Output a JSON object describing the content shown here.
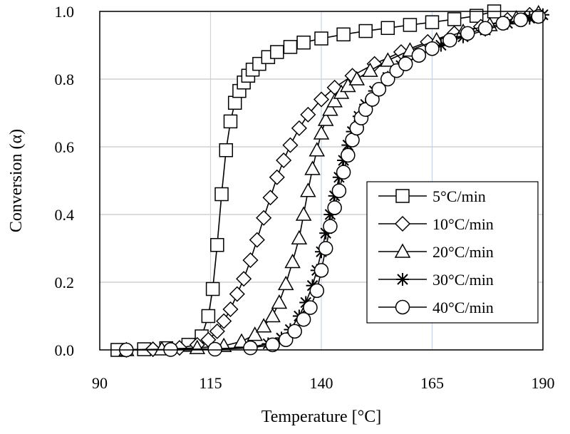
{
  "chart_data": {
    "type": "line",
    "title": "",
    "xlabel": "Temperature [°C]",
    "ylabel": "Conversion (α)",
    "xlim": [
      90,
      190
    ],
    "ylim": [
      0,
      1
    ],
    "xticks": [
      90,
      115,
      140,
      165,
      190
    ],
    "yticks": [
      0,
      0.2,
      0.4,
      0.6,
      0.8,
      1.0
    ],
    "xtick_labels": [
      "90",
      "115",
      "140",
      "165",
      "190"
    ],
    "ytick_labels": [
      "0.0",
      "0.2",
      "0.4",
      "0.6",
      "0.8",
      "1.0"
    ],
    "grid": true,
    "legend_position": "right",
    "series": [
      {
        "name": "5°C/min",
        "marker": "square",
        "x": [
          94,
          100,
          105,
          110,
          113,
          114.5,
          115.5,
          116.5,
          117.5,
          118.5,
          119.5,
          120.5,
          121.5,
          122.5,
          123.5,
          124.5,
          126,
          128,
          130,
          133,
          136,
          140,
          145,
          150,
          155,
          160,
          165,
          170,
          175,
          179
        ],
        "y": [
          0.0,
          0.002,
          0.005,
          0.015,
          0.04,
          0.1,
          0.18,
          0.31,
          0.46,
          0.59,
          0.675,
          0.73,
          0.765,
          0.79,
          0.81,
          0.828,
          0.845,
          0.865,
          0.88,
          0.895,
          0.908,
          0.92,
          0.932,
          0.942,
          0.951,
          0.96,
          0.968,
          0.977,
          0.987,
          1.0
        ]
      },
      {
        "name": "10°C/min",
        "marker": "diamond",
        "x": [
          96,
          102,
          108,
          112,
          114.5,
          116.5,
          118,
          119.5,
          121,
          122.5,
          124,
          125.5,
          127,
          128.5,
          130,
          131.5,
          133,
          135,
          137,
          140,
          143,
          147,
          152,
          158,
          164,
          170,
          176,
          182,
          187
        ],
        "y": [
          0.0,
          0.002,
          0.006,
          0.015,
          0.03,
          0.055,
          0.085,
          0.12,
          0.165,
          0.21,
          0.265,
          0.325,
          0.39,
          0.45,
          0.51,
          0.56,
          0.605,
          0.655,
          0.695,
          0.74,
          0.775,
          0.81,
          0.845,
          0.88,
          0.91,
          0.935,
          0.955,
          0.975,
          0.99
        ]
      },
      {
        "name": "20°C/min",
        "marker": "triangle",
        "x": [
          96,
          104,
          112,
          118,
          122,
          125,
          127,
          129,
          130.5,
          132,
          133.5,
          135,
          136,
          137,
          138,
          139,
          140,
          141,
          142,
          143,
          144.5,
          146,
          148,
          151,
          155,
          160,
          166,
          172,
          178,
          184,
          189
        ],
        "y": [
          0.0,
          0.002,
          0.006,
          0.012,
          0.025,
          0.045,
          0.07,
          0.1,
          0.14,
          0.195,
          0.26,
          0.33,
          0.4,
          0.47,
          0.535,
          0.59,
          0.64,
          0.68,
          0.71,
          0.735,
          0.76,
          0.78,
          0.8,
          0.825,
          0.855,
          0.885,
          0.915,
          0.94,
          0.96,
          0.98,
          0.995
        ]
      },
      {
        "name": "30°C/min",
        "marker": "star",
        "x": [
          96,
          106,
          116,
          124,
          128,
          131,
          133,
          135,
          136.5,
          138,
          139,
          140,
          141,
          142,
          143,
          144,
          145,
          146,
          147,
          148.5,
          150,
          152,
          155,
          158,
          162,
          167,
          172,
          177,
          182,
          187,
          190
        ],
        "y": [
          0.0,
          0.001,
          0.003,
          0.008,
          0.018,
          0.035,
          0.06,
          0.1,
          0.14,
          0.19,
          0.235,
          0.29,
          0.345,
          0.4,
          0.455,
          0.51,
          0.56,
          0.605,
          0.645,
          0.69,
          0.725,
          0.765,
          0.805,
          0.84,
          0.87,
          0.9,
          0.925,
          0.945,
          0.965,
          0.98,
          0.99
        ]
      },
      {
        "name": "40°C/min",
        "marker": "circle",
        "x": [
          96,
          106,
          116,
          124,
          129,
          132,
          134,
          136,
          137.5,
          139,
          140,
          141,
          142,
          143,
          144,
          145,
          146,
          147,
          148,
          149,
          150,
          151.5,
          153,
          155,
          157,
          159,
          162,
          165,
          169,
          173,
          177,
          181,
          185,
          189
        ],
        "y": [
          0.0,
          0.001,
          0.002,
          0.006,
          0.015,
          0.03,
          0.055,
          0.09,
          0.125,
          0.175,
          0.235,
          0.3,
          0.365,
          0.42,
          0.47,
          0.525,
          0.575,
          0.62,
          0.655,
          0.685,
          0.71,
          0.74,
          0.77,
          0.8,
          0.825,
          0.845,
          0.87,
          0.89,
          0.915,
          0.935,
          0.95,
          0.965,
          0.975,
          0.985
        ]
      }
    ]
  }
}
